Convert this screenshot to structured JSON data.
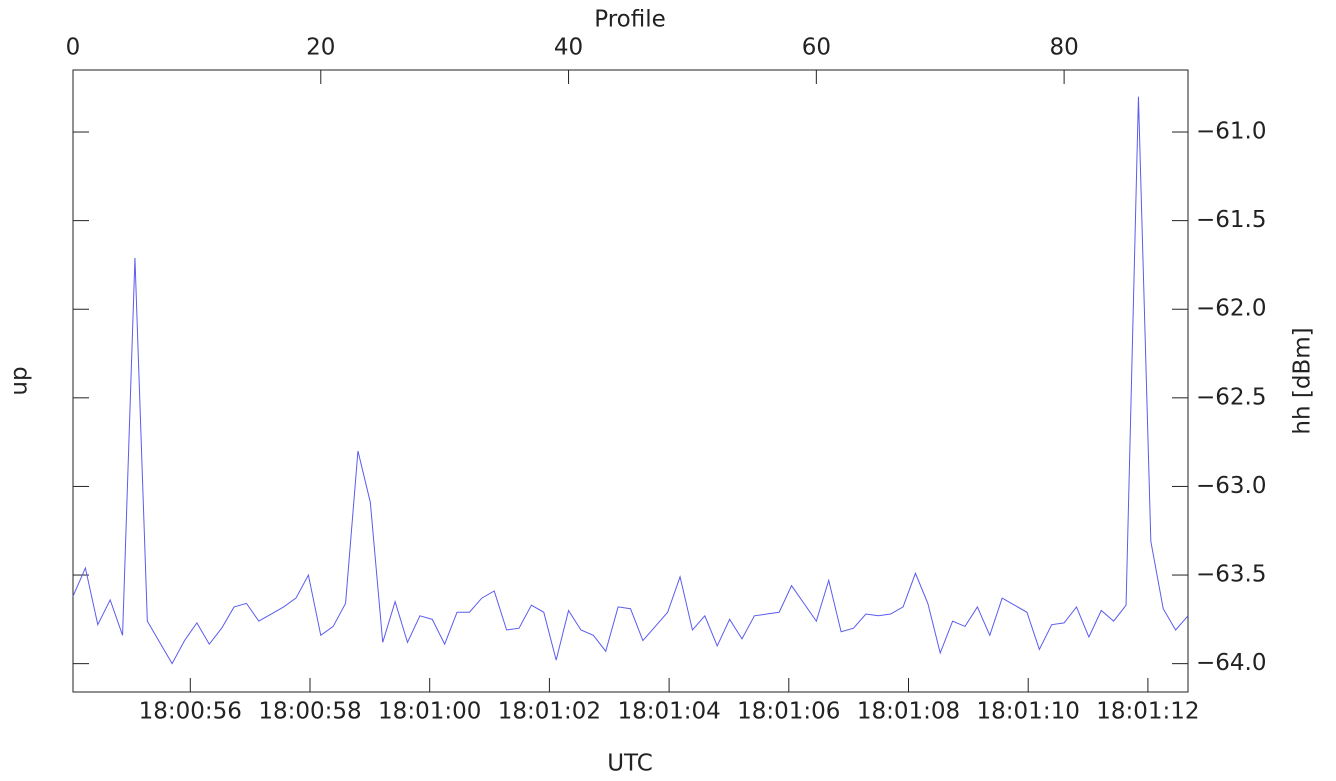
{
  "chart_data": {
    "type": "line",
    "xlabel_top": "Profile",
    "xlabel_bottom": "UTC",
    "ylabel_left": "up",
    "ylabel_right": "hh [dBm]",
    "x": [
      0,
      1,
      2,
      3,
      4,
      5,
      6,
      7,
      8,
      9,
      10,
      11,
      12,
      13,
      14,
      15,
      16,
      17,
      18,
      19,
      20,
      21,
      22,
      23,
      24,
      25,
      26,
      27,
      28,
      29,
      30,
      31,
      32,
      33,
      34,
      35,
      36,
      37,
      38,
      39,
      40,
      41,
      42,
      43,
      44,
      45,
      46,
      47,
      48,
      49,
      50,
      51,
      52,
      53,
      54,
      55,
      56,
      57,
      58,
      59,
      60,
      61,
      62,
      63,
      64,
      65,
      66,
      67,
      68,
      69,
      70,
      71,
      72,
      73,
      74,
      75,
      76,
      77,
      78,
      79,
      80,
      81,
      82,
      83,
      84,
      85,
      86,
      87,
      88,
      89,
      90
    ],
    "series": [
      {
        "name": "hh",
        "color": "#5b5bef",
        "axis": "y2",
        "values": [
          -63.62,
          -63.46,
          -63.78,
          -63.64,
          -63.84,
          -61.71,
          -63.76,
          -63.88,
          -64.0,
          -63.87,
          -63.77,
          -63.89,
          -63.8,
          -63.68,
          -63.66,
          -63.76,
          -63.72,
          -63.68,
          -63.63,
          -63.5,
          -63.84,
          -63.79,
          -63.66,
          -62.8,
          -63.09,
          -63.88,
          -63.65,
          -63.88,
          -63.73,
          -63.75,
          -63.89,
          -63.71,
          -63.71,
          -63.63,
          -63.59,
          -63.81,
          -63.8,
          -63.67,
          -63.71,
          -63.98,
          -63.7,
          -63.81,
          -63.84,
          -63.93,
          -63.68,
          -63.69,
          -63.87,
          -63.79,
          -63.71,
          -63.51,
          -63.81,
          -63.73,
          -63.9,
          -63.75,
          -63.86,
          -63.73,
          -63.72,
          -63.71,
          -63.56,
          -63.66,
          -63.76,
          -63.53,
          -63.82,
          -63.8,
          -63.72,
          -63.73,
          -63.72,
          -63.68,
          -63.49,
          -63.66,
          -63.94,
          -63.76,
          -63.79,
          -63.68,
          -63.84,
          -63.63,
          -63.67,
          -63.71,
          -63.92,
          -63.78,
          -63.77,
          -63.68,
          -63.85,
          -63.7,
          -63.76,
          -63.67,
          -60.8,
          -63.31,
          -63.69,
          -63.81,
          -63.73
        ]
      }
    ],
    "xlim": [
      0,
      90
    ],
    "xticks": [
      0,
      20,
      40,
      60,
      80
    ],
    "x2lim": [
      54.04,
      72.67
    ],
    "x2ticks": [
      {
        "value": 56,
        "label": "18:00:56"
      },
      {
        "value": 58,
        "label": "18:00:58"
      },
      {
        "value": 60,
        "label": "18:01:00"
      },
      {
        "value": 62,
        "label": "18:01:02"
      },
      {
        "value": 64,
        "label": "18:01:04"
      },
      {
        "value": 66,
        "label": "18:01:06"
      },
      {
        "value": 68,
        "label": "18:01:08"
      },
      {
        "value": 70,
        "label": "18:01:10"
      },
      {
        "value": 72,
        "label": "18:01:12"
      }
    ],
    "y2lim": [
      -64.16,
      -60.65
    ],
    "y2ticks": [
      {
        "value": -61.0,
        "label": "−61.0"
      },
      {
        "value": -61.5,
        "label": "−61.5"
      },
      {
        "value": -62.0,
        "label": "−62.0"
      },
      {
        "value": -62.5,
        "label": "−62.5"
      },
      {
        "value": -63.0,
        "label": "−63.0"
      },
      {
        "value": -63.5,
        "label": "−63.5"
      },
      {
        "value": -64.0,
        "label": "−64.0"
      }
    ]
  }
}
